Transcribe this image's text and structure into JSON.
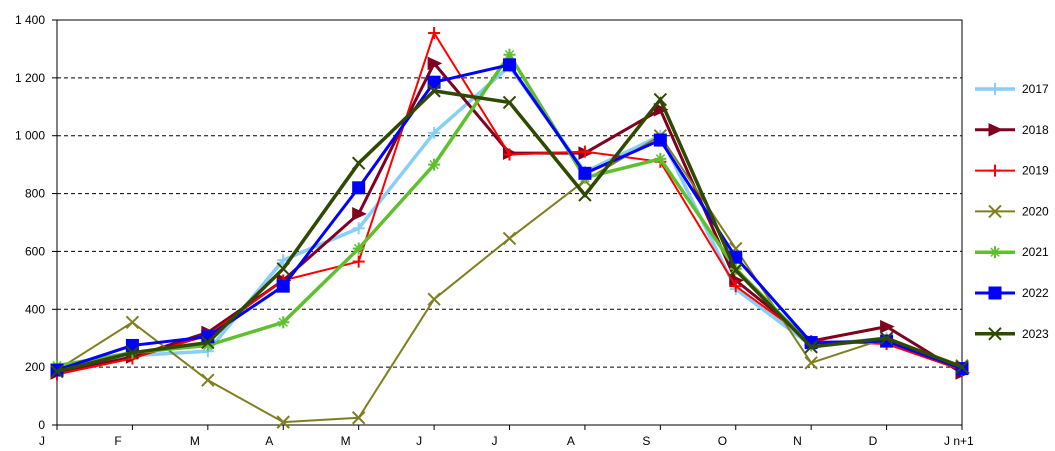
{
  "chart_data": {
    "type": "line",
    "title": "",
    "xlabel": "",
    "ylabel": "",
    "categories": [
      "J",
      "F",
      "M",
      "A",
      "M",
      "J",
      "J",
      "A",
      "S",
      "O",
      "N",
      "D",
      "J n+1"
    ],
    "ylim": [
      0,
      1400
    ],
    "yticks": [
      0,
      200,
      400,
      600,
      800,
      1000,
      1200,
      1400
    ],
    "ytick_labels": [
      "0",
      "200",
      "400",
      "600",
      "800",
      "1 000",
      "1 200",
      "1 400"
    ],
    "grid": "horizontal-dashed",
    "legend_position": "right",
    "series": [
      {
        "name": "2017",
        "color": "#87cefa",
        "marker": "plus",
        "values": [
          185,
          240,
          255,
          570,
          680,
          1010,
          1240,
          875,
          1000,
          470,
          275,
          300,
          195
        ]
      },
      {
        "name": "2018",
        "color": "#800020",
        "marker": "triangle-right",
        "values": [
          180,
          235,
          320,
          500,
          730,
          1250,
          940,
          940,
          1090,
          500,
          290,
          340,
          180
        ]
      },
      {
        "name": "2019",
        "color": "#ff0000",
        "marker": "plus",
        "values": [
          175,
          230,
          310,
          500,
          565,
          1355,
          935,
          945,
          910,
          480,
          290,
          280,
          190
        ]
      },
      {
        "name": "2020",
        "color": "#7f7f1f",
        "marker": "x",
        "values": [
          190,
          355,
          155,
          10,
          25,
          435,
          645,
          845,
          1000,
          610,
          215,
          300,
          205
        ]
      },
      {
        "name": "2021",
        "color": "#5fc02e",
        "marker": "star",
        "values": [
          205,
          250,
          275,
          355,
          610,
          900,
          1280,
          855,
          920,
          540,
          275,
          295,
          195
        ]
      },
      {
        "name": "2022",
        "color": "#0000ff",
        "marker": "square",
        "values": [
          190,
          275,
          305,
          480,
          820,
          1185,
          1245,
          870,
          985,
          580,
          285,
          290,
          195
        ]
      },
      {
        "name": "2023",
        "color": "#2f4a00",
        "marker": "x",
        "values": [
          185,
          250,
          285,
          540,
          905,
          1155,
          1115,
          795,
          1125,
          535,
          270,
          300,
          200
        ]
      }
    ]
  }
}
